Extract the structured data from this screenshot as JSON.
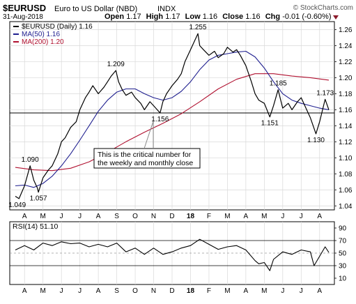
{
  "header": {
    "symbol": "$EURUSD",
    "name": "Euro to US Dollar (NBD)",
    "index_tag": "INDX",
    "credit": "© StockCharts.com",
    "date": "31-Aug-2018",
    "quote": {
      "open_label": "Open",
      "open": "1.17",
      "high_label": "High",
      "high": "1.17",
      "low_label": "Low",
      "low": "1.16",
      "close_label": "Close",
      "close": "1.16",
      "chg_label": "Chg",
      "chg": "-0.01 (-0.60%)"
    }
  },
  "legend": [
    {
      "text": "$EURUSD (Daily) 1.16",
      "color": "#000000",
      "marker": "line"
    },
    {
      "text": "MA(50) 1.16",
      "color": "#1f1f8f",
      "marker": "line"
    },
    {
      "text": "MA(200) 1.20",
      "color": "#b0102f",
      "marker": "line"
    }
  ],
  "annotation": {
    "line1": "This is the critical number for",
    "line2": "the weekly and monthly close"
  },
  "rsi": {
    "label": "RSI(14) 51.10",
    "ticks": [
      "90",
      "70",
      "50",
      "30",
      "10"
    ],
    "range": [
      0,
      100
    ],
    "bands": [
      70,
      30,
      50
    ]
  },
  "chart_data": {
    "type": "line",
    "price_panel": {
      "y_ticks": [
        "1.26",
        "1.24",
        "1.22",
        "1.20",
        "1.18",
        "1.16",
        "1.14",
        "1.12",
        "1.10",
        "1.08",
        "1.06",
        "1.04"
      ],
      "ylim": [
        1.035,
        1.27
      ],
      "support_line": 1.156,
      "x_labels": [
        "A",
        "M",
        "J",
        "J",
        "A",
        "S",
        "O",
        "N",
        "D",
        "18",
        "F",
        "M",
        "A",
        "M",
        "J",
        "J",
        "A"
      ],
      "price_labels": [
        {
          "month": 0.1,
          "value": 1.049,
          "text": "1.049",
          "pos": "below"
        },
        {
          "month": 1.25,
          "value": 1.057,
          "text": "1.057",
          "pos": "below"
        },
        {
          "month": 0.8,
          "value": 1.09,
          "text": "1.090",
          "pos": "above"
        },
        {
          "month": 5.45,
          "value": 1.209,
          "text": "1.209",
          "pos": "above"
        },
        {
          "month": 7.85,
          "value": 1.156,
          "text": "1.156",
          "pos": "below"
        },
        {
          "month": 9.9,
          "value": 1.255,
          "text": "1.255",
          "pos": "above"
        },
        {
          "month": 14.25,
          "value": 1.185,
          "text": "1.185",
          "pos": "above"
        },
        {
          "month": 13.8,
          "value": 1.151,
          "text": "1.151",
          "pos": "below"
        },
        {
          "month": 16.8,
          "value": 1.173,
          "text": "1.173",
          "pos": "above"
        },
        {
          "month": 16.3,
          "value": 1.13,
          "text": "1.130",
          "pos": "below"
        }
      ],
      "series": [
        {
          "name": "$EURUSD (Daily)",
          "color": "#000000",
          "x": [
            0,
            0.2,
            0.5,
            0.8,
            1,
            1.2,
            1.25,
            1.5,
            1.8,
            2,
            2.3,
            2.5,
            2.7,
            3,
            3.3,
            3.5,
            3.8,
            4,
            4.2,
            4.5,
            4.8,
            5,
            5.2,
            5.45,
            5.6,
            5.8,
            6,
            6.3,
            6.5,
            6.8,
            7,
            7.3,
            7.5,
            7.85,
            8,
            8.2,
            8.5,
            8.8,
            9,
            9.2,
            9.5,
            9.7,
            9.9,
            10,
            10.2,
            10.5,
            10.8,
            11,
            11.3,
            11.5,
            11.8,
            12,
            12.2,
            12.5,
            12.8,
            13,
            13.2,
            13.5,
            13.8,
            14,
            14.25,
            14.5,
            14.8,
            15,
            15.3,
            15.5,
            15.8,
            16,
            16.3,
            16.5,
            16.8,
            17
          ],
          "y": [
            1.052,
            1.049,
            1.065,
            1.09,
            1.072,
            1.062,
            1.057,
            1.075,
            1.085,
            1.09,
            1.105,
            1.12,
            1.125,
            1.138,
            1.145,
            1.16,
            1.175,
            1.182,
            1.19,
            1.18,
            1.188,
            1.195,
            1.202,
            1.209,
            1.195,
            1.185,
            1.178,
            1.182,
            1.175,
            1.168,
            1.16,
            1.17,
            1.165,
            1.156,
            1.17,
            1.18,
            1.19,
            1.198,
            1.205,
            1.22,
            1.235,
            1.245,
            1.255,
            1.24,
            1.235,
            1.228,
            1.233,
            1.225,
            1.23,
            1.238,
            1.232,
            1.235,
            1.228,
            1.215,
            1.195,
            1.18,
            1.172,
            1.168,
            1.151,
            1.165,
            1.185,
            1.162,
            1.168,
            1.16,
            1.17,
            1.175,
            1.16,
            1.15,
            1.13,
            1.145,
            1.173,
            1.16
          ]
        },
        {
          "name": "MA(50)",
          "color": "#1f1f8f",
          "x": [
            0,
            0.5,
            1,
            1.5,
            2,
            2.5,
            3,
            3.5,
            4,
            4.5,
            5,
            5.5,
            6,
            6.5,
            7,
            7.5,
            8,
            8.5,
            9,
            9.5,
            10,
            10.5,
            11,
            11.5,
            12,
            12.5,
            13,
            13.5,
            14,
            14.5,
            15,
            15.5,
            16,
            16.5,
            17
          ],
          "y": [
            1.065,
            1.066,
            1.063,
            1.068,
            1.077,
            1.09,
            1.105,
            1.122,
            1.14,
            1.158,
            1.172,
            1.182,
            1.186,
            1.186,
            1.18,
            1.175,
            1.172,
            1.175,
            1.183,
            1.195,
            1.21,
            1.222,
            1.228,
            1.23,
            1.232,
            1.233,
            1.226,
            1.212,
            1.195,
            1.18,
            1.172,
            1.168,
            1.165,
            1.162,
            1.16
          ]
        },
        {
          "name": "MA(200)",
          "color": "#b0102f",
          "x": [
            0,
            1,
            2,
            3,
            4,
            5,
            6,
            7,
            8,
            9,
            10,
            11,
            12,
            13,
            14,
            15,
            16,
            17
          ],
          "y": [
            1.088,
            1.085,
            1.084,
            1.087,
            1.095,
            1.107,
            1.12,
            1.132,
            1.143,
            1.155,
            1.17,
            1.186,
            1.198,
            1.205,
            1.205,
            1.202,
            1.2,
            1.197
          ]
        }
      ]
    },
    "rsi_panel": {
      "ylim": [
        0,
        100
      ],
      "series": [
        {
          "name": "RSI(14)",
          "color": "#000000",
          "x": [
            0,
            0.5,
            1,
            1.5,
            2,
            2.5,
            3,
            3.5,
            4,
            4.5,
            5,
            5.5,
            6,
            6.5,
            7,
            7.5,
            8,
            8.5,
            9,
            9.5,
            10,
            10.5,
            11,
            11.5,
            12,
            12.5,
            13,
            13.2,
            13.5,
            13.8,
            14,
            14.5,
            15,
            15.5,
            16,
            16.2,
            16.5,
            16.8,
            17
          ],
          "y": [
            55,
            62,
            55,
            66,
            62,
            68,
            65,
            66,
            60,
            64,
            60,
            66,
            52,
            58,
            48,
            58,
            48,
            52,
            58,
            62,
            72,
            64,
            56,
            60,
            62,
            55,
            38,
            33,
            35,
            22,
            40,
            52,
            48,
            55,
            52,
            30,
            45,
            60,
            51.1
          ]
        }
      ]
    }
  }
}
